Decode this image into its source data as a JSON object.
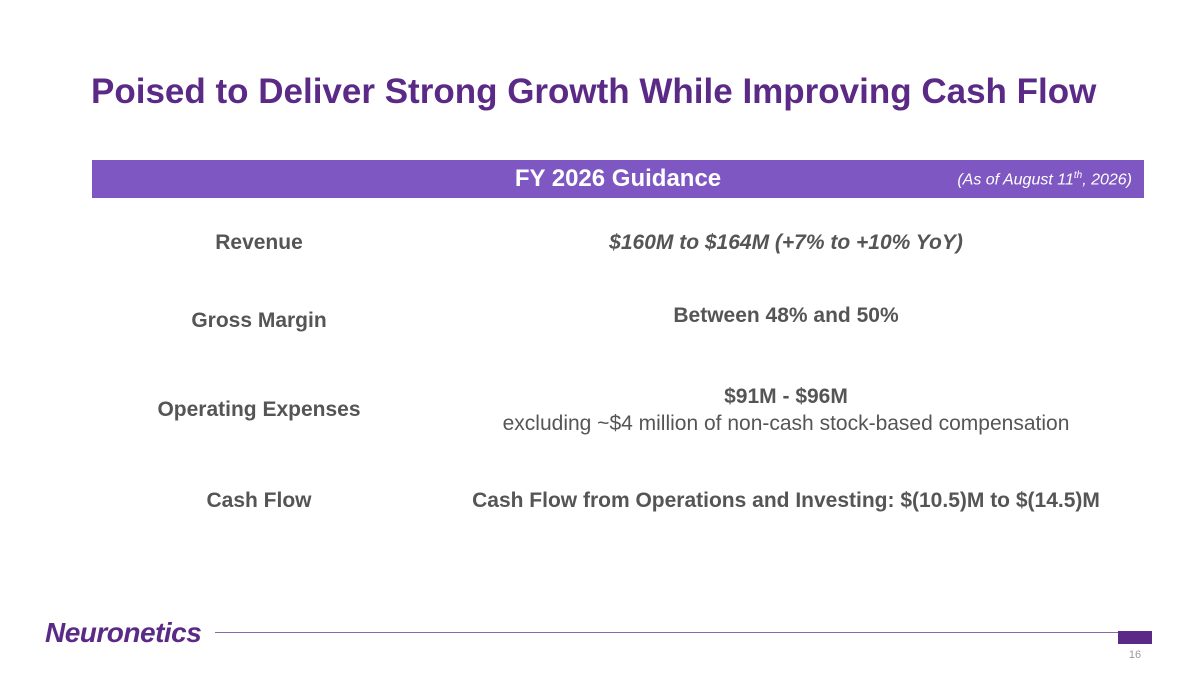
{
  "slide": {
    "title": "Poised to Deliver Strong Growth While Improving Cash Flow",
    "page_number": "16"
  },
  "banner": {
    "heading": "FY 2026 Guidance",
    "note_prefix": "(As of August 11",
    "note_sup": "th",
    "note_suffix": ", 2026)"
  },
  "guidance": {
    "revenue": {
      "label": "Revenue",
      "value": "$160M to $164M (+7% to +10% YoY)"
    },
    "gross_margin": {
      "label": "Gross Margin",
      "value": "Between 48% and 50%"
    },
    "operating_expenses": {
      "label": "Operating Expenses",
      "value": "$91M - $96M",
      "detail": "excluding ~$4 million of non-cash stock-based compensation"
    },
    "cash_flow": {
      "label": "Cash Flow",
      "value": "Cash Flow from Operations and Investing: $(10.5)M to $(14.5)M"
    }
  },
  "footer": {
    "logo": "Neuronetics",
    "accent_color": "#5b2a86",
    "banner_color": "#7e57c2"
  }
}
